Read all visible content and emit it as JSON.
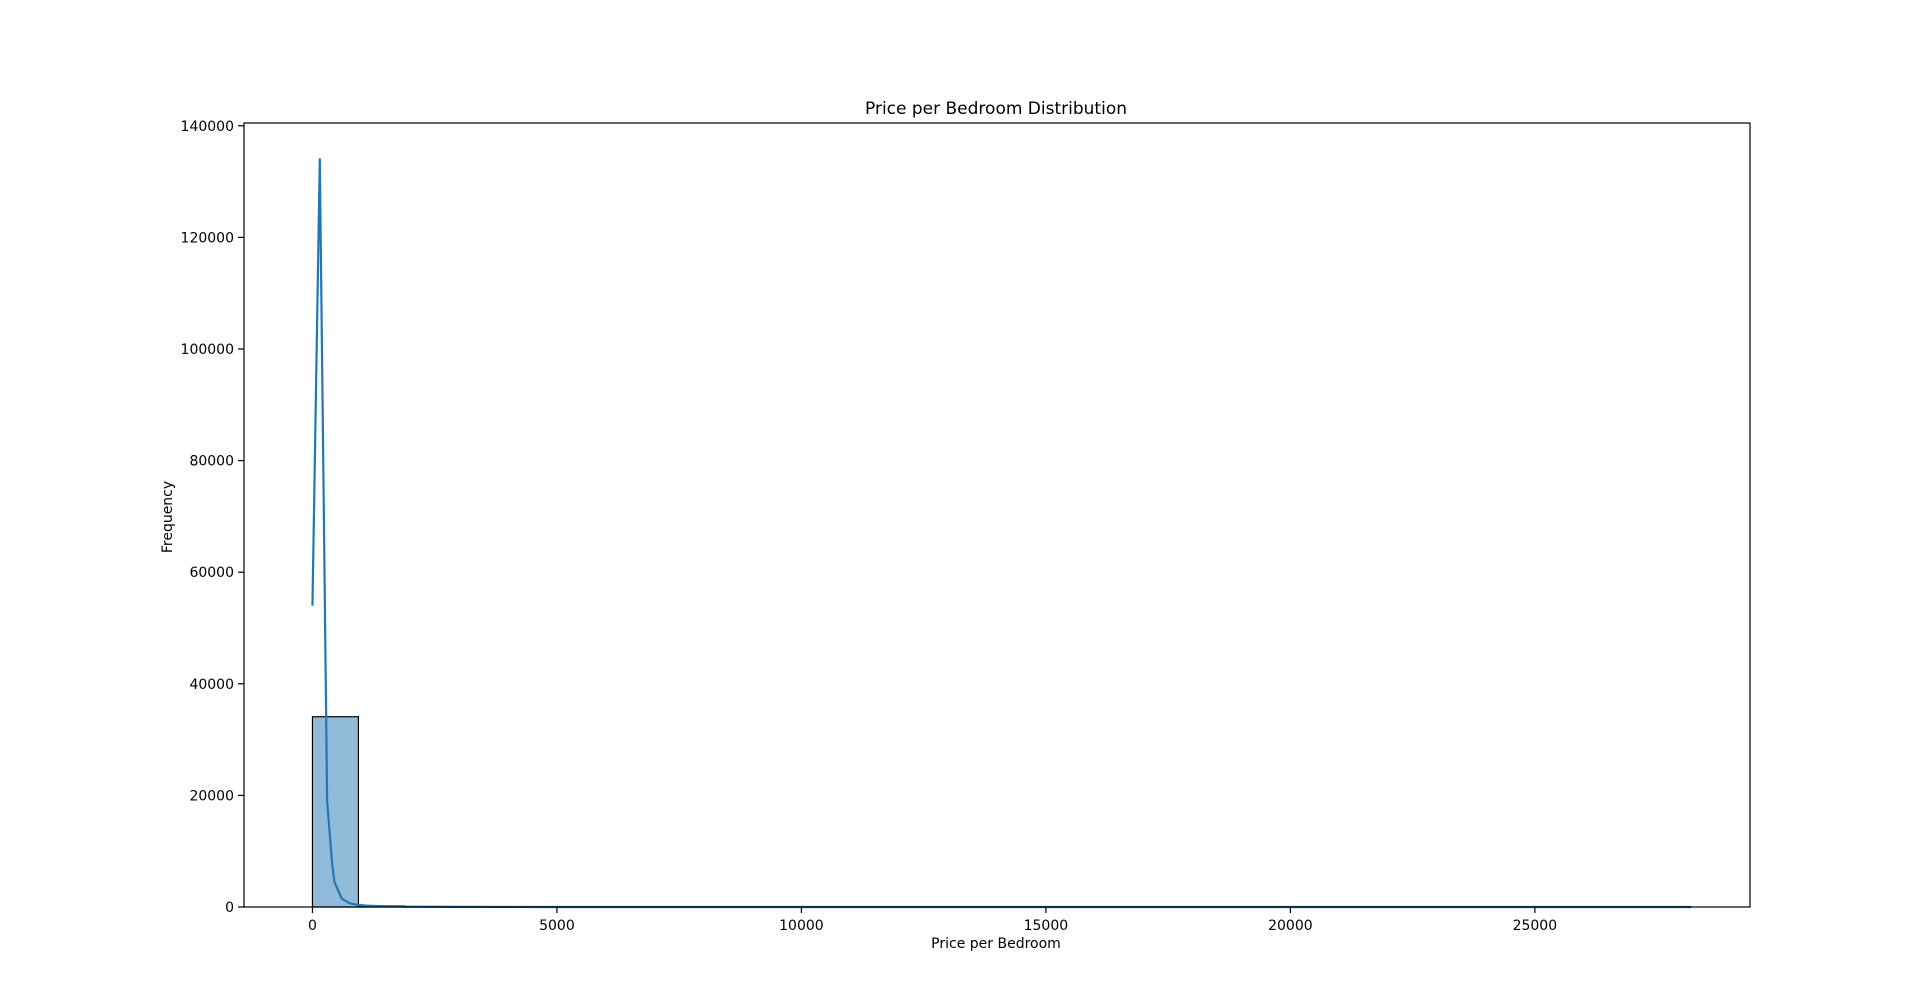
{
  "chart_data": {
    "type": "histogram",
    "title": "Price per Bedroom Distribution",
    "xlabel": "Price per Bedroom",
    "ylabel": "Frequency",
    "xlim": [
      -1400,
      29400
    ],
    "ylim": [
      0,
      140500
    ],
    "xticks": [
      0,
      5000,
      10000,
      15000,
      20000,
      25000
    ],
    "xtick_labels": [
      "0",
      "5000",
      "10000",
      "15000",
      "20000",
      "25000"
    ],
    "yticks": [
      0,
      20000,
      40000,
      60000,
      80000,
      100000,
      120000,
      140000
    ],
    "ytick_labels": [
      "0",
      "20000",
      "40000",
      "60000",
      "80000",
      "100000",
      "120000",
      "140000"
    ],
    "bins": [
      {
        "x0": 0,
        "x1": 940,
        "count": 34100
      },
      {
        "x0": 940,
        "x1": 1880,
        "count": 200
      },
      {
        "x0": 1880,
        "x1": 2820,
        "count": 60
      },
      {
        "x0": 2820,
        "x1": 3760,
        "count": 20
      }
    ],
    "kde": {
      "x": [
        0,
        150,
        300,
        400,
        450,
        600,
        750,
        900,
        1100,
        1500,
        2000,
        3000,
        5000,
        10000,
        15000,
        20000,
        25000,
        28200
      ],
      "y": [
        54000,
        134000,
        19000,
        8000,
        4500,
        1500,
        700,
        400,
        250,
        120,
        60,
        20,
        5,
        0,
        0,
        0,
        0,
        0
      ]
    },
    "colors": {
      "bar_fill": "#8fbbd9",
      "bar_edge": "#000000",
      "kde_line": "#1f77b4"
    },
    "grid": false,
    "legend": "none"
  }
}
